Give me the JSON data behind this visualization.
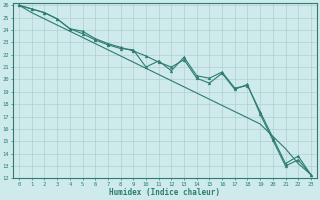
{
  "x": [
    0,
    1,
    2,
    3,
    4,
    5,
    6,
    7,
    8,
    9,
    10,
    11,
    12,
    13,
    14,
    15,
    16,
    17,
    18,
    19,
    20,
    21,
    22,
    23
  ],
  "line1": [
    26.0,
    25.7,
    25.4,
    24.9,
    24.1,
    23.9,
    23.3,
    22.9,
    22.6,
    22.3,
    21.9,
    21.4,
    21.0,
    21.6,
    20.1,
    19.7,
    20.5,
    19.2,
    19.6,
    17.2,
    15.1,
    13.0,
    13.5,
    12.3
  ],
  "line2": [
    26.0,
    25.7,
    25.4,
    24.9,
    24.1,
    23.7,
    23.2,
    22.8,
    22.5,
    22.4,
    21.0,
    21.5,
    20.7,
    21.8,
    20.3,
    20.1,
    20.6,
    19.3,
    19.5,
    17.4,
    15.3,
    13.2,
    13.8,
    12.3
  ],
  "line3": [
    26.0,
    25.4,
    24.9,
    24.4,
    23.9,
    23.4,
    22.9,
    22.4,
    21.9,
    21.4,
    20.9,
    20.4,
    19.9,
    19.4,
    18.9,
    18.4,
    17.9,
    17.4,
    16.9,
    16.4,
    15.4,
    14.4,
    13.2,
    12.3
  ],
  "line_color": "#2d7d6f",
  "bg_color": "#ceeaea",
  "grid_major_color": "#b0cfcf",
  "grid_minor_color": "#c5e0e0",
  "xlabel": "Humidex (Indice chaleur)",
  "xlim": [
    -0.5,
    23.5
  ],
  "ylim": [
    12,
    26.2
  ],
  "xticks": [
    0,
    1,
    2,
    3,
    4,
    5,
    6,
    7,
    8,
    9,
    10,
    11,
    12,
    13,
    14,
    15,
    16,
    17,
    18,
    19,
    20,
    21,
    22,
    23
  ],
  "yticks": [
    12,
    13,
    14,
    15,
    16,
    17,
    18,
    19,
    20,
    21,
    22,
    23,
    24,
    25,
    26
  ]
}
